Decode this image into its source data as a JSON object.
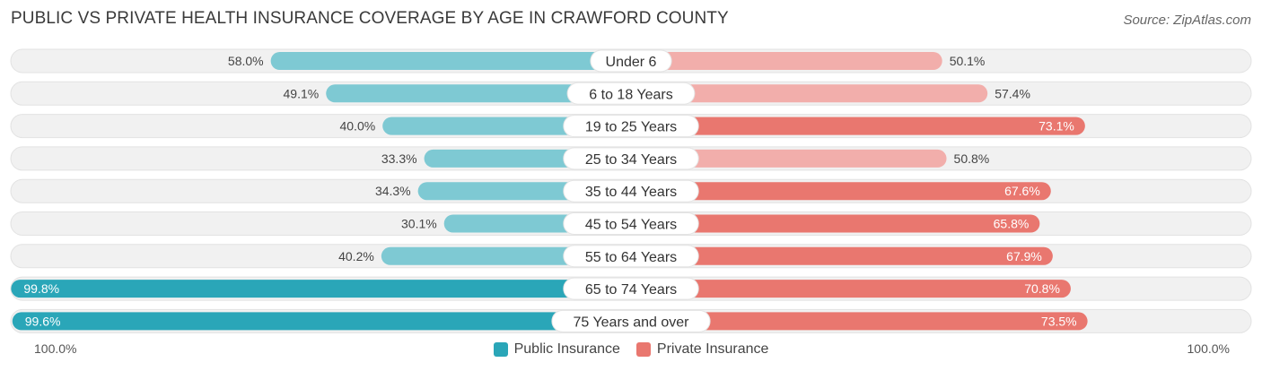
{
  "title": "PUBLIC VS PRIVATE HEALTH INSURANCE COVERAGE BY AGE IN CRAWFORD COUNTY",
  "source": "Source: ZipAtlas.com",
  "colors": {
    "public_light": "#7ec9d3",
    "public_dark": "#2aa6b8",
    "private_light": "#f2aeab",
    "private_dark": "#e9776f",
    "track": "#f1f1f1"
  },
  "chart_data": {
    "type": "bar",
    "orientation": "horizontal-diverging",
    "title": "PUBLIC VS PRIVATE HEALTH INSURANCE COVERAGE BY AGE IN CRAWFORD COUNTY",
    "categories": [
      "Under 6",
      "6 to 18 Years",
      "19 to 25 Years",
      "25 to 34 Years",
      "35 to 44 Years",
      "45 to 54 Years",
      "55 to 64 Years",
      "65 to 74 Years",
      "75 Years and over"
    ],
    "series": [
      {
        "name": "Public Insurance",
        "values": [
          58.0,
          49.1,
          40.0,
          33.3,
          34.3,
          30.1,
          40.2,
          99.8,
          99.6
        ]
      },
      {
        "name": "Private Insurance",
        "values": [
          50.1,
          57.4,
          73.1,
          50.8,
          67.6,
          65.8,
          67.9,
          70.8,
          73.5
        ]
      }
    ],
    "value_labels": {
      "public": [
        "58.0%",
        "49.1%",
        "40.0%",
        "33.3%",
        "34.3%",
        "30.1%",
        "40.2%",
        "99.8%",
        "99.6%"
      ],
      "private": [
        "50.1%",
        "57.4%",
        "73.1%",
        "50.8%",
        "67.6%",
        "65.8%",
        "67.9%",
        "70.8%",
        "73.5%"
      ]
    },
    "xlim": [
      0,
      100
    ],
    "axis_labels": {
      "left": "100.0%",
      "right": "100.0%"
    },
    "legend": [
      "Public Insurance",
      "Private Insurance"
    ],
    "legend_position": "bottom-center"
  }
}
